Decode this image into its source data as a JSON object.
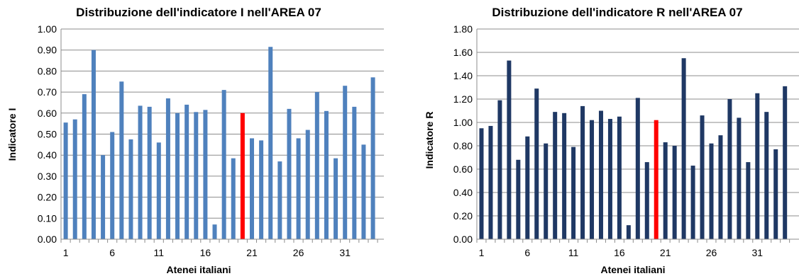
{
  "chart_data": [
    {
      "type": "bar",
      "title": "Distribuzione dell'indicatore I nell'AREA 07",
      "xlabel": "Atenei italiani",
      "ylabel": "Indicatore I",
      "ylim": [
        0,
        1.0
      ],
      "yticks": [
        "0.00",
        "0.10",
        "0.20",
        "0.30",
        "0.40",
        "0.50",
        "0.60",
        "0.70",
        "0.80",
        "0.90",
        "1.00"
      ],
      "xticks": [
        "1",
        "6",
        "11",
        "16",
        "21",
        "26",
        "31"
      ],
      "grid": true,
      "bar_color": "#4f81bd",
      "highlight_color": "#ff0000",
      "highlight_index": 19,
      "categories": [
        1,
        2,
        3,
        4,
        5,
        6,
        7,
        8,
        9,
        10,
        11,
        12,
        13,
        14,
        15,
        16,
        17,
        18,
        19,
        20,
        21,
        22,
        23,
        24,
        25,
        26,
        27,
        28,
        29,
        30,
        31,
        32,
        33,
        34
      ],
      "values": [
        0.555,
        0.57,
        0.69,
        0.9,
        0.4,
        0.51,
        0.75,
        0.475,
        0.635,
        0.63,
        0.46,
        0.67,
        0.6,
        0.64,
        0.605,
        0.615,
        0.07,
        0.71,
        0.385,
        0.6,
        0.48,
        0.47,
        0.915,
        0.37,
        0.62,
        0.48,
        0.52,
        0.7,
        0.61,
        0.385,
        0.73,
        0.63,
        0.45,
        0.77
      ]
    },
    {
      "type": "bar",
      "title": "Distribuzione dell'indicatore R nell'AREA 07",
      "xlabel": "Atenei italiani",
      "ylabel": "Indicatore R",
      "ylim": [
        0,
        1.8
      ],
      "yticks": [
        "0.00",
        "0.20",
        "0.40",
        "0.60",
        "0.80",
        "1.00",
        "1.20",
        "1.40",
        "1.60",
        "1.80"
      ],
      "xticks": [
        "1",
        "6",
        "11",
        "16",
        "21",
        "26",
        "31"
      ],
      "grid": true,
      "bar_color": "#1f3864",
      "highlight_color": "#ff0000",
      "highlight_index": 19,
      "categories": [
        1,
        2,
        3,
        4,
        5,
        6,
        7,
        8,
        9,
        10,
        11,
        12,
        13,
        14,
        15,
        16,
        17,
        18,
        19,
        20,
        21,
        22,
        23,
        24,
        25,
        26,
        27,
        28,
        29,
        30,
        31,
        32,
        33,
        34
      ],
      "values": [
        0.95,
        0.97,
        1.19,
        1.53,
        0.68,
        0.88,
        1.29,
        0.82,
        1.09,
        1.08,
        0.79,
        1.14,
        1.02,
        1.1,
        1.03,
        1.05,
        0.12,
        1.21,
        0.66,
        1.02,
        0.83,
        0.8,
        1.55,
        0.63,
        1.06,
        0.82,
        0.89,
        1.2,
        1.04,
        0.66,
        1.25,
        1.09,
        0.77,
        1.31
      ]
    }
  ]
}
